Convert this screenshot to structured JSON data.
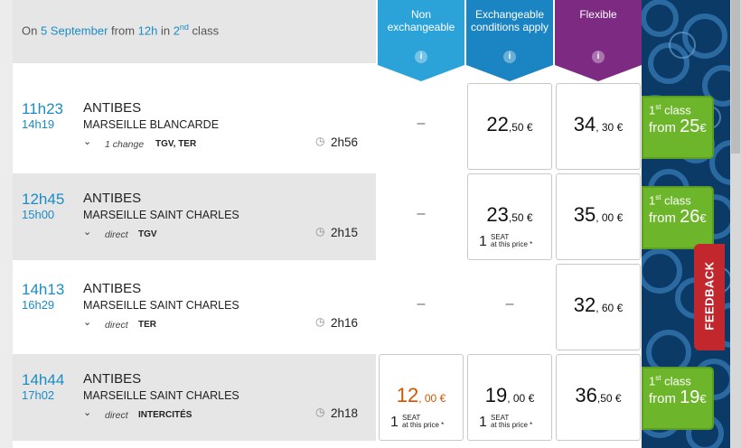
{
  "summary": {
    "prefix": "On ",
    "date": "5 September",
    "from_word": " from ",
    "hour": "12h",
    "in_word": " in ",
    "class_num": "2",
    "class_sup": "nd",
    "class_word": " class"
  },
  "fare_headers": [
    {
      "label": "Non exchangeable",
      "color": "#2ba3d9",
      "icon": "info-icon"
    },
    {
      "label": "Exchangeable conditions apply",
      "color": "#1b84c2",
      "icon": "info-icon"
    },
    {
      "label": "Flexible",
      "color": "#7d2a83",
      "icon": "info-icon"
    }
  ],
  "colors": {
    "accent": "#1b8cc4",
    "orange_price": "#d35400",
    "first_class": "#6db52a",
    "feedback": "#c1272d"
  },
  "journeys": [
    {
      "depart": "11h23",
      "arrive": "14h19",
      "origin": "ANTIBES",
      "destination": "MARSEILLE BLANCARDE",
      "changes": "1 change",
      "train_type": "TGV, TER",
      "duration": "2h56",
      "non_exchangeable": {
        "dash": "–"
      },
      "exchangeable": {
        "int": "22",
        "dec": ",50 €"
      },
      "flexible": {
        "int": "34",
        "dec": ", 30 €"
      },
      "first_class": {
        "l1": "1",
        "l1sup": "st",
        "l1rest": " class",
        "from": "from ",
        "price": "25",
        "cur": "€"
      }
    },
    {
      "depart": "12h45",
      "arrive": "15h00",
      "origin": "ANTIBES",
      "destination": "MARSEILLE SAINT CHARLES",
      "changes": "direct",
      "train_type": "TGV",
      "duration": "2h15",
      "non_exchangeable": {
        "dash": "–"
      },
      "exchangeable": {
        "int": "23",
        "dec": ",50 €",
        "seat_num": "1",
        "seat_l1": "SEAT",
        "seat_l2": "at this price *"
      },
      "flexible": {
        "int": "35",
        "dec": ", 00 €"
      },
      "first_class": {
        "l1": "1",
        "l1sup": "st",
        "l1rest": " class",
        "from": "from ",
        "price": "26",
        "cur": "€"
      }
    },
    {
      "depart": "14h13",
      "arrive": "16h29",
      "origin": "ANTIBES",
      "destination": "MARSEILLE SAINT CHARLES",
      "changes": "direct",
      "train_type": "TER",
      "duration": "2h16",
      "non_exchangeable": {
        "dash": "–"
      },
      "exchangeable": {
        "dash": "–"
      },
      "flexible": {
        "int": "32",
        "dec": ", 60 €"
      }
    },
    {
      "depart": "14h44",
      "arrive": "17h02",
      "origin": "ANTIBES",
      "destination": "MARSEILLE SAINT CHARLES",
      "changes": "direct",
      "train_type": "INTERCITÉS",
      "duration": "2h18",
      "non_exchangeable": {
        "int": "12",
        "dec": ", 00 €",
        "seat_num": "1",
        "seat_l1": "SEAT",
        "seat_l2": "at this price *"
      },
      "exchangeable": {
        "int": "19",
        "dec": ", 00 €",
        "seat_num": "1",
        "seat_l1": "SEAT",
        "seat_l2": "at this price *"
      },
      "flexible": {
        "int": "36",
        "dec": ",50 €"
      },
      "first_class": {
        "l1": "1",
        "l1sup": "st",
        "l1rest": " class",
        "from": "from ",
        "price": "19",
        "cur": "€"
      }
    }
  ],
  "feedback_label": "FEEDBACK"
}
